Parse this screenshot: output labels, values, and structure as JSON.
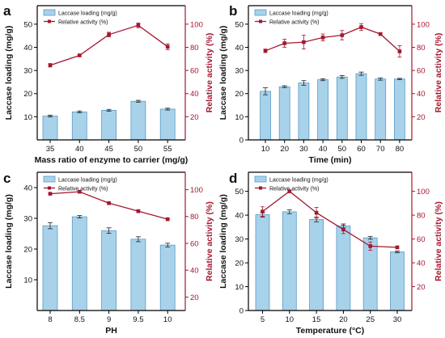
{
  "figure": {
    "colors": {
      "bar_fill": "#a8d2ea",
      "bar_stroke": "#5a9bc8",
      "activity_line": "#a3182f",
      "left_axis": "#000000",
      "right_axis": "#a3182f",
      "error_bar": "#222222"
    }
  },
  "chart_data": [
    {
      "panel_label": "a",
      "type": "bar",
      "categories": [
        "35",
        "40",
        "45",
        "50",
        "55"
      ],
      "xlabel": "Mass ratio of enzyme to carrier (mg/g)",
      "ylabel": "Laccase loading (mg/g)",
      "y2label": "Relative activity (%)",
      "ylim": [
        0,
        58
      ],
      "y2lim": [
        0,
        116
      ],
      "yticks": [
        10,
        20,
        30,
        40,
        50
      ],
      "y2ticks": [
        20,
        40,
        60,
        80,
        100
      ],
      "legend": "top-left",
      "grid": false,
      "series": [
        {
          "name": "Laccase loading (mg/g)",
          "kind": "bar",
          "axis": "left",
          "values": [
            10.3,
            12.1,
            12.8,
            16.7,
            13.3
          ],
          "errors": [
            0.4,
            0.4,
            0.4,
            0.4,
            0.4
          ]
        },
        {
          "name": "Relative activity (%)",
          "kind": "line",
          "axis": "right",
          "values": [
            64.5,
            73,
            91,
            99,
            80.5
          ],
          "errors": [
            1.5,
            1,
            2,
            2,
            2.5
          ]
        }
      ]
    },
    {
      "panel_label": "b",
      "type": "bar",
      "categories": [
        "10",
        "20",
        "30",
        "40",
        "50",
        "60",
        "70",
        "80"
      ],
      "xlabel": "Time (min)",
      "ylabel": "Laccase loading (mg/g)",
      "y2label": "Relative activity (%)",
      "ylim": [
        0,
        58
      ],
      "y2lim": [
        0,
        116
      ],
      "yticks": [
        0,
        10,
        20,
        30,
        40,
        50
      ],
      "y2ticks": [
        20,
        40,
        60,
        80,
        100
      ],
      "legend": "top-left",
      "grid": false,
      "series": [
        {
          "name": "Laccase loading (mg/g)",
          "kind": "bar",
          "axis": "left",
          "values": [
            21.0,
            23.0,
            24.6,
            26.0,
            27.2,
            28.6,
            26.3,
            26.3
          ],
          "errors": [
            1.5,
            0.4,
            1.0,
            0.4,
            0.6,
            0.7,
            0.5,
            0.3
          ]
        },
        {
          "name": "Relative activity (%)",
          "kind": "line",
          "axis": "right",
          "values": [
            77,
            83.5,
            84.5,
            88.5,
            90.5,
            97.5,
            91.5,
            76.5
          ],
          "errors": [
            1.5,
            3.5,
            6,
            3,
            4,
            3,
            1,
            5
          ]
        }
      ]
    },
    {
      "panel_label": "c",
      "type": "bar",
      "categories": [
        "8",
        "8.5",
        "9",
        "9.5",
        "10"
      ],
      "xlabel": "PH",
      "ylabel": "Laccase loading (mg/g)",
      "y2label": "Relative activity (%)",
      "ylim": [
        0,
        45
      ],
      "y2lim": [
        10,
        113
      ],
      "yticks": [
        10,
        20,
        30,
        40
      ],
      "y2ticks": [
        20,
        40,
        60,
        80,
        100
      ],
      "legend": "top-left",
      "grid": false,
      "series": [
        {
          "name": "Laccase loading (mg/g)",
          "kind": "bar",
          "axis": "left",
          "values": [
            27.6,
            30.5,
            26.0,
            23.2,
            21.3
          ],
          "errors": [
            1.0,
            0.4,
            0.9,
            0.8,
            0.6
          ]
        },
        {
          "name": "Relative activity (%)",
          "kind": "line",
          "axis": "right",
          "values": [
            97,
            98.5,
            90,
            84,
            78
          ],
          "errors": [
            0.5,
            1,
            0.5,
            1,
            0.5
          ]
        }
      ]
    },
    {
      "panel_label": "d",
      "type": "bar",
      "categories": [
        "5",
        "10",
        "15",
        "20",
        "25",
        "30"
      ],
      "xlabel": "Temperature (°C)",
      "ylabel": "Laccase loading (mg/g)",
      "y2label": "Relative activity (%)",
      "ylim": [
        0,
        58
      ],
      "y2lim": [
        0,
        116
      ],
      "yticks": [
        0,
        10,
        20,
        30,
        40,
        50
      ],
      "y2ticks": [
        20,
        40,
        60,
        80,
        100
      ],
      "legend": "top-left",
      "grid": false,
      "series": [
        {
          "name": "Laccase loading (mg/g)",
          "kind": "bar",
          "axis": "left",
          "values": [
            40.2,
            41.4,
            38.2,
            35.5,
            30.5,
            24.6
          ],
          "errors": [
            1.0,
            0.8,
            1.0,
            0.8,
            0.6,
            0.4
          ]
        },
        {
          "name": "Relative activity (%)",
          "kind": "line",
          "axis": "right",
          "values": [
            83,
            100,
            82,
            68,
            54,
            53
          ],
          "errors": [
            4,
            1,
            4.5,
            3.5,
            3.5,
            1
          ]
        }
      ]
    }
  ]
}
